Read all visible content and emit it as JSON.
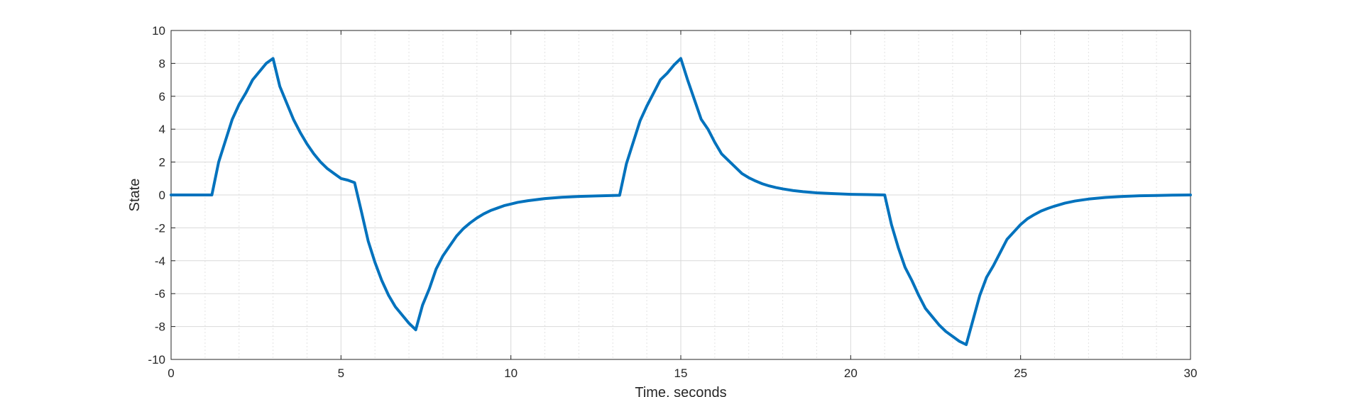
{
  "chart_data": {
    "type": "line",
    "title": "",
    "xlabel": "Time, seconds",
    "ylabel": "State",
    "xlim": [
      0,
      30
    ],
    "ylim": [
      -10,
      10
    ],
    "xticks": [
      0,
      5,
      10,
      15,
      20,
      25,
      30
    ],
    "xtick_labels": [
      "0",
      "5",
      "10",
      "15",
      "20",
      "25",
      "30"
    ],
    "yticks": [
      -10,
      -8,
      -6,
      -4,
      -2,
      0,
      2,
      4,
      6,
      8,
      10
    ],
    "ytick_labels": [
      "-10",
      "-8",
      "-6",
      "-4",
      "-2",
      "0",
      "2",
      "4",
      "6",
      "8",
      "10"
    ],
    "grid": true,
    "minor_grid": true,
    "line_color": "#0072BD",
    "series": [
      {
        "x": [
          0,
          1.2,
          1.4,
          1.6,
          1.8,
          2.0,
          2.2,
          2.4,
          2.6,
          2.8,
          3.0,
          3.2,
          3.4,
          3.6,
          3.8,
          4.0,
          4.2,
          4.4,
          4.6,
          4.8,
          5.0,
          5.2,
          5.4,
          5.6,
          5.8,
          6.0,
          6.2,
          6.4,
          6.6,
          6.8,
          7.0,
          7.2,
          7.4,
          7.6,
          7.8,
          8.0,
          8.2,
          8.4,
          8.6,
          8.8,
          9.0,
          9.2,
          9.4,
          9.6,
          9.8,
          10.0,
          10.2,
          10.5,
          11.0,
          11.5,
          12.0,
          12.5,
          13.0,
          13.2,
          13.4,
          13.6,
          13.8,
          14.0,
          14.2,
          14.4,
          14.6,
          14.8,
          15.0,
          15.2,
          15.4,
          15.6,
          15.8,
          16.0,
          16.2,
          16.4,
          16.6,
          16.8,
          17.0,
          17.2,
          17.4,
          17.6,
          17.8,
          18.0,
          18.3,
          18.6,
          19.0,
          19.5,
          20.0,
          20.5,
          21.0,
          21.2,
          21.4,
          21.6,
          21.8,
          22.0,
          22.2,
          22.4,
          22.6,
          22.8,
          23.0,
          23.2,
          23.4,
          23.6,
          23.8,
          24.0,
          24.2,
          24.4,
          24.6,
          24.8,
          25.0,
          25.2,
          25.4,
          25.6,
          25.8,
          26.0,
          26.3,
          26.6,
          27.0,
          27.5,
          28.0,
          28.5,
          29.0,
          29.5,
          30.0
        ],
        "values": [
          0,
          0,
          2.0,
          3.3,
          4.6,
          5.5,
          6.2,
          7.0,
          7.5,
          8.0,
          8.3,
          6.6,
          5.6,
          4.6,
          3.8,
          3.1,
          2.5,
          2.0,
          1.6,
          1.3,
          1.0,
          0.9,
          0.75,
          -1.0,
          -2.8,
          -4.1,
          -5.2,
          -6.1,
          -6.8,
          -7.3,
          -7.8,
          -8.2,
          -6.7,
          -5.7,
          -4.5,
          -3.7,
          -3.1,
          -2.5,
          -2.05,
          -1.7,
          -1.4,
          -1.15,
          -0.95,
          -0.8,
          -0.65,
          -0.55,
          -0.45,
          -0.35,
          -0.22,
          -0.14,
          -0.09,
          -0.06,
          -0.03,
          -0.02,
          1.9,
          3.2,
          4.5,
          5.4,
          6.2,
          7.0,
          7.4,
          7.9,
          8.3,
          7.0,
          5.8,
          4.6,
          4.0,
          3.2,
          2.5,
          2.1,
          1.7,
          1.3,
          1.05,
          0.85,
          0.68,
          0.55,
          0.45,
          0.37,
          0.27,
          0.2,
          0.13,
          0.08,
          0.04,
          0.02,
          0.0,
          -1.8,
          -3.2,
          -4.4,
          -5.2,
          -6.1,
          -6.9,
          -7.4,
          -7.9,
          -8.3,
          -8.6,
          -8.9,
          -9.1,
          -7.6,
          -6.1,
          -5.0,
          -4.3,
          -3.5,
          -2.7,
          -2.25,
          -1.8,
          -1.45,
          -1.2,
          -0.98,
          -0.82,
          -0.68,
          -0.5,
          -0.37,
          -0.25,
          -0.15,
          -0.09,
          -0.05,
          -0.03,
          -0.01,
          0.0
        ]
      }
    ]
  }
}
